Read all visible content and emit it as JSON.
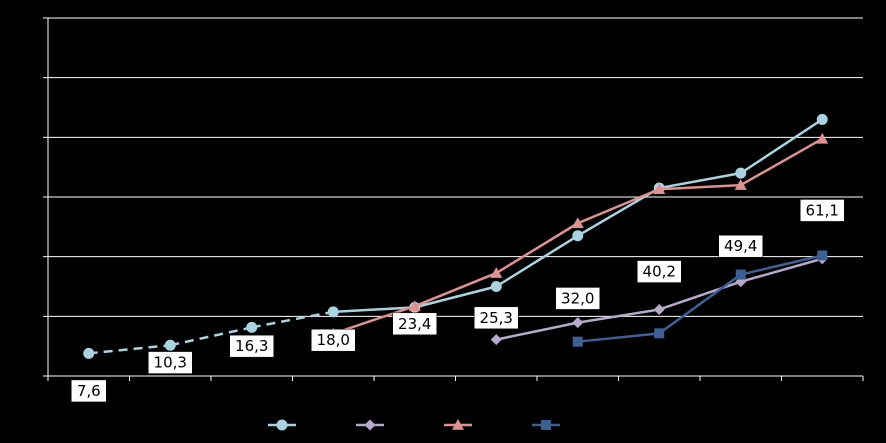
{
  "chart_data": {
    "type": "line",
    "title": "",
    "xlabel": "",
    "ylabel": "",
    "ylim": [
      0,
      120
    ],
    "yticks": [
      0,
      20,
      40,
      60,
      80,
      100,
      120
    ],
    "grid": true,
    "legend_position": "bottom",
    "background": "#000000",
    "axis_color": "#ffffff",
    "grid_color": "#ffffff",
    "x_count": 10,
    "series": [
      {
        "color": "#a9d3e0",
        "marker": "circle",
        "values": [
          7.6,
          10.3,
          16.3,
          21.5,
          23.0,
          30.0,
          47.0,
          63.0,
          68.0,
          86.0
        ],
        "dashed_until": 3
      },
      {
        "color": "#b7a9cc",
        "marker": "diamond",
        "values": [
          null,
          null,
          null,
          null,
          null,
          12.2,
          17.9,
          22.3,
          31.6,
          39.3
        ]
      },
      {
        "color": "#de9290",
        "marker": "triangle",
        "values": [
          null,
          null,
          null,
          14.2,
          23.4,
          34.5,
          51.2,
          62.6,
          64.0,
          79.5
        ]
      },
      {
        "color": "#3d6094",
        "marker": "square",
        "values": [
          null,
          null,
          null,
          null,
          null,
          null,
          11.5,
          14.3,
          34.0,
          40.4
        ]
      }
    ],
    "data_labels": [
      {
        "text": "7,6",
        "x_index": 0,
        "y": -5.0
      },
      {
        "text": "10,3",
        "x_index": 1,
        "y": 4.5
      },
      {
        "text": "16,3",
        "x_index": 2,
        "y": 10.0
      },
      {
        "text": "18,0",
        "x_index": 3,
        "y": 12.0
      },
      {
        "text": "23,4",
        "x_index": 4,
        "y": 17.5
      },
      {
        "text": "25,3",
        "x_index": 5,
        "y": 19.5
      },
      {
        "text": "32,0",
        "x_index": 6,
        "y": 26.0
      },
      {
        "text": "40,2",
        "x_index": 7,
        "y": 35.0
      },
      {
        "text": "49,4",
        "x_index": 8,
        "y": 43.5
      },
      {
        "text": "61,1",
        "x_index": 9,
        "y": 55.5
      }
    ]
  }
}
